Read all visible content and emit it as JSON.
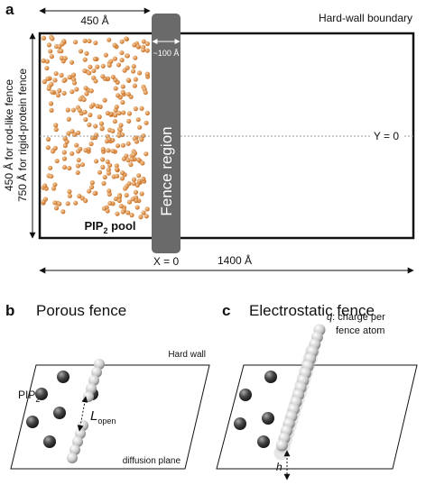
{
  "panel_a": {
    "label": "a",
    "width_label": "450 Å",
    "boundary_label": "Hard-wall boundary",
    "fence_width_label": "~100 Å",
    "fence_label": "Fence region",
    "y_axis_label": "Y = 0",
    "height_label_1": "450 Å for rod-like fence",
    "height_label_2": "750 Å for rigid-protein fence",
    "pool_label": [
      "PIP",
      "2",
      " pool"
    ],
    "x_axis_label": "X = 0",
    "length_label": "1400 Å"
  },
  "panel_b": {
    "label": "b",
    "title": "Porous fence",
    "wall_label": "Hard wall",
    "pip_label": [
      "PIP",
      "2"
    ],
    "gap_label": [
      "L",
      "open"
    ],
    "plane_label": "diffusion plane"
  },
  "panel_c": {
    "label": "c",
    "title": "Electrostatic fence",
    "charge_label_1": "q",
    "charge_label_2": ": charge per",
    "charge_label_3": "fence atom",
    "height_label": "h"
  }
}
